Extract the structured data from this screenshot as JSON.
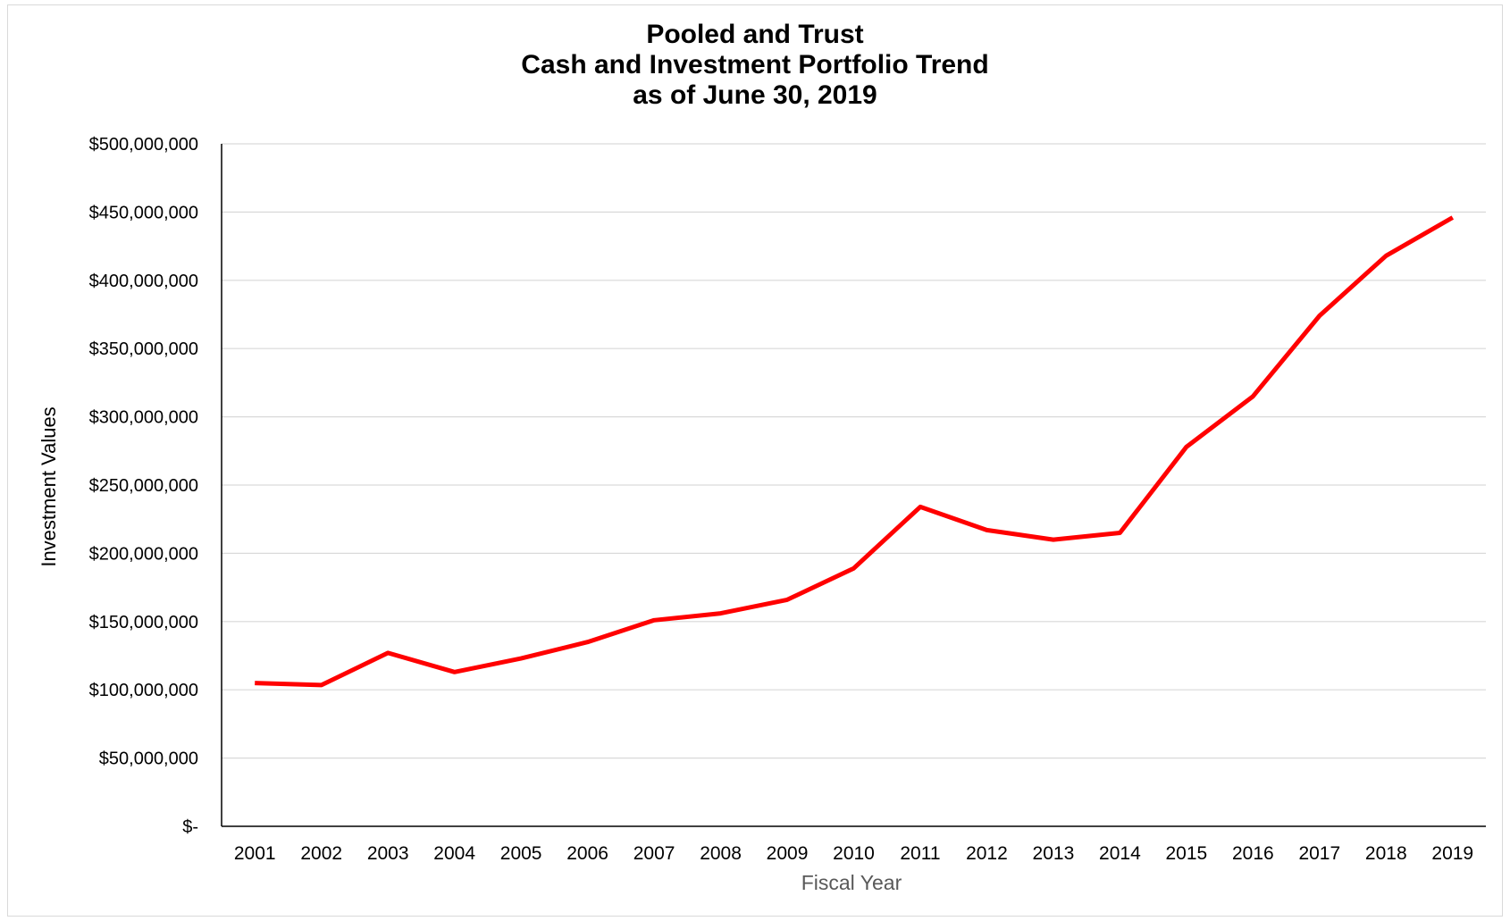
{
  "chart_data": {
    "type": "line",
    "title": [
      "Pooled and Trust",
      "Cash and Investment Portfolio Trend",
      "as of June 30, 2019"
    ],
    "xlabel": "Fiscal Year",
    "ylabel": "Investment Values",
    "categories": [
      "2001",
      "2002",
      "2003",
      "2004",
      "2005",
      "2006",
      "2007",
      "2008",
      "2009",
      "2010",
      "2011",
      "2012",
      "2013",
      "2014",
      "2015",
      "2016",
      "2017",
      "2018",
      "2019"
    ],
    "series": [
      {
        "values": [
          105000000,
          103500000,
          127000000,
          113000000,
          123000000,
          135000000,
          151000000,
          156000000,
          166000000,
          189000000,
          234000000,
          217000000,
          210000000,
          215000000,
          278000000,
          315000000,
          374000000,
          418000000,
          446000000
        ],
        "color": "#ff0000"
      }
    ],
    "ylim": [
      0,
      500000000
    ],
    "yticks": [
      0,
      50000000,
      100000000,
      150000000,
      200000000,
      250000000,
      300000000,
      350000000,
      400000000,
      450000000,
      500000000
    ],
    "ytick_labels": [
      "$-",
      "$50,000,000",
      "$100,000,000",
      "$150,000,000",
      "$200,000,000",
      "$250,000,000",
      "$300,000,000",
      "$350,000,000",
      "$400,000,000",
      "$450,000,000",
      "$500,000,000"
    ],
    "grid": "horizontal",
    "grid_color": "#d9d9d9",
    "axis_color": "#000000",
    "legend": "none"
  }
}
